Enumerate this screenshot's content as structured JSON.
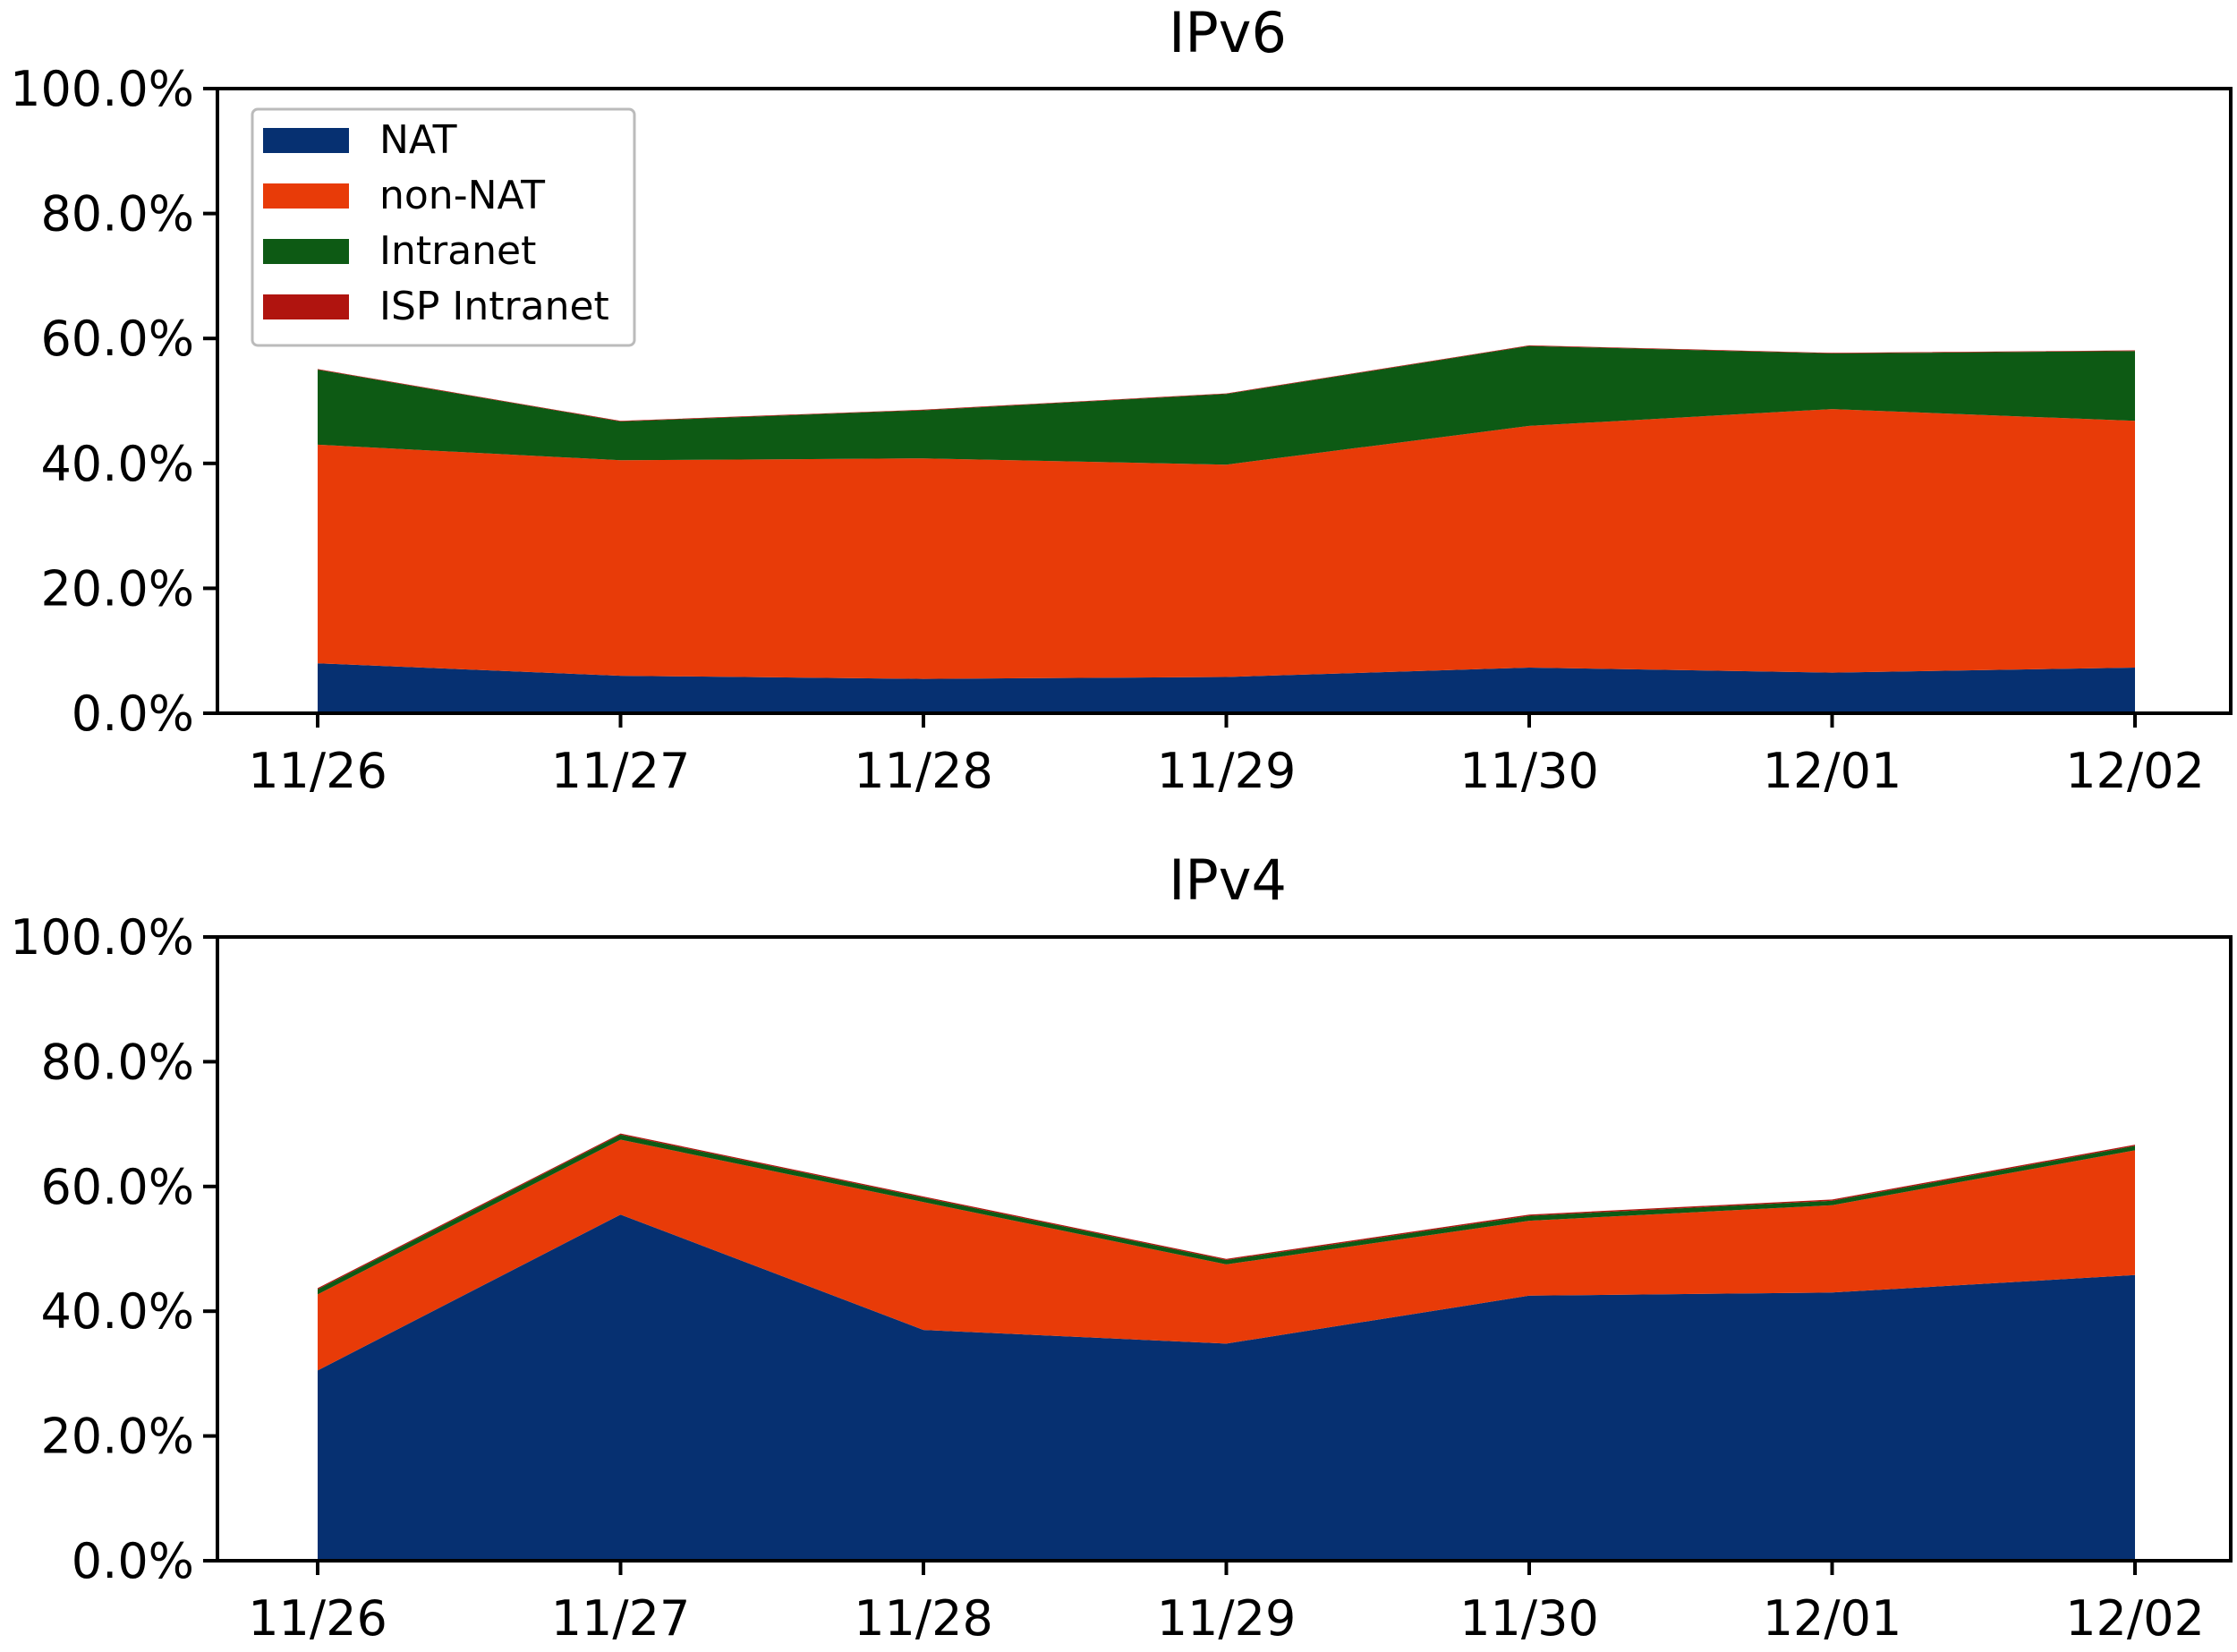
{
  "series_names": [
    "NAT",
    "non-NAT",
    "Intranet",
    "ISP Intranet"
  ],
  "colors": {
    "NAT": "#063071",
    "non-NAT": "#e83b08",
    "Intranet": "#0d5a14",
    "ISP Intranet": "#b0140f"
  },
  "chart_data": [
    {
      "type": "area",
      "stacked": true,
      "title": "IPv6",
      "categories": [
        "11/26",
        "11/27",
        "11/28",
        "11/29",
        "11/30",
        "12/01",
        "12/02"
      ],
      "y_ticks": [
        "0.0%",
        "20.0%",
        "40.0%",
        "60.0%",
        "80.0%",
        "100.0%"
      ],
      "ylim": [
        0,
        100
      ],
      "legend": "top-left",
      "series": [
        {
          "name": "NAT",
          "values": [
            8.0,
            6.0,
            5.5,
            5.8,
            7.3,
            6.5,
            7.3
          ]
        },
        {
          "name": "non-NAT",
          "values": [
            35.0,
            34.5,
            35.3,
            34.0,
            38.7,
            42.2,
            39.5
          ]
        },
        {
          "name": "Intranet",
          "values": [
            12.0,
            6.2,
            7.7,
            11.3,
            12.8,
            8.9,
            11.2
          ]
        },
        {
          "name": "ISP Intranet",
          "values": [
            0.1,
            0.1,
            0.1,
            0.1,
            0.1,
            0.1,
            0.1
          ]
        }
      ]
    },
    {
      "type": "area",
      "stacked": true,
      "title": "IPv4",
      "categories": [
        "11/26",
        "11/27",
        "11/28",
        "11/29",
        "11/30",
        "12/01",
        "12/02"
      ],
      "y_ticks": [
        "0.0%",
        "20.0%",
        "40.0%",
        "60.0%",
        "80.0%",
        "100.0%"
      ],
      "ylim": [
        0,
        100
      ],
      "series": [
        {
          "name": "NAT",
          "values": [
            30.5,
            55.5,
            37.0,
            34.8,
            42.5,
            43.0,
            45.8
          ]
        },
        {
          "name": "non-NAT",
          "values": [
            12.2,
            12.0,
            20.5,
            12.7,
            12.0,
            14.0,
            20.0
          ]
        },
        {
          "name": "Intranet",
          "values": [
            0.8,
            0.8,
            0.7,
            0.7,
            0.8,
            0.7,
            0.7
          ]
        },
        {
          "name": "ISP Intranet",
          "values": [
            0.2,
            0.2,
            0.2,
            0.2,
            0.2,
            0.2,
            0.2
          ]
        }
      ]
    }
  ]
}
